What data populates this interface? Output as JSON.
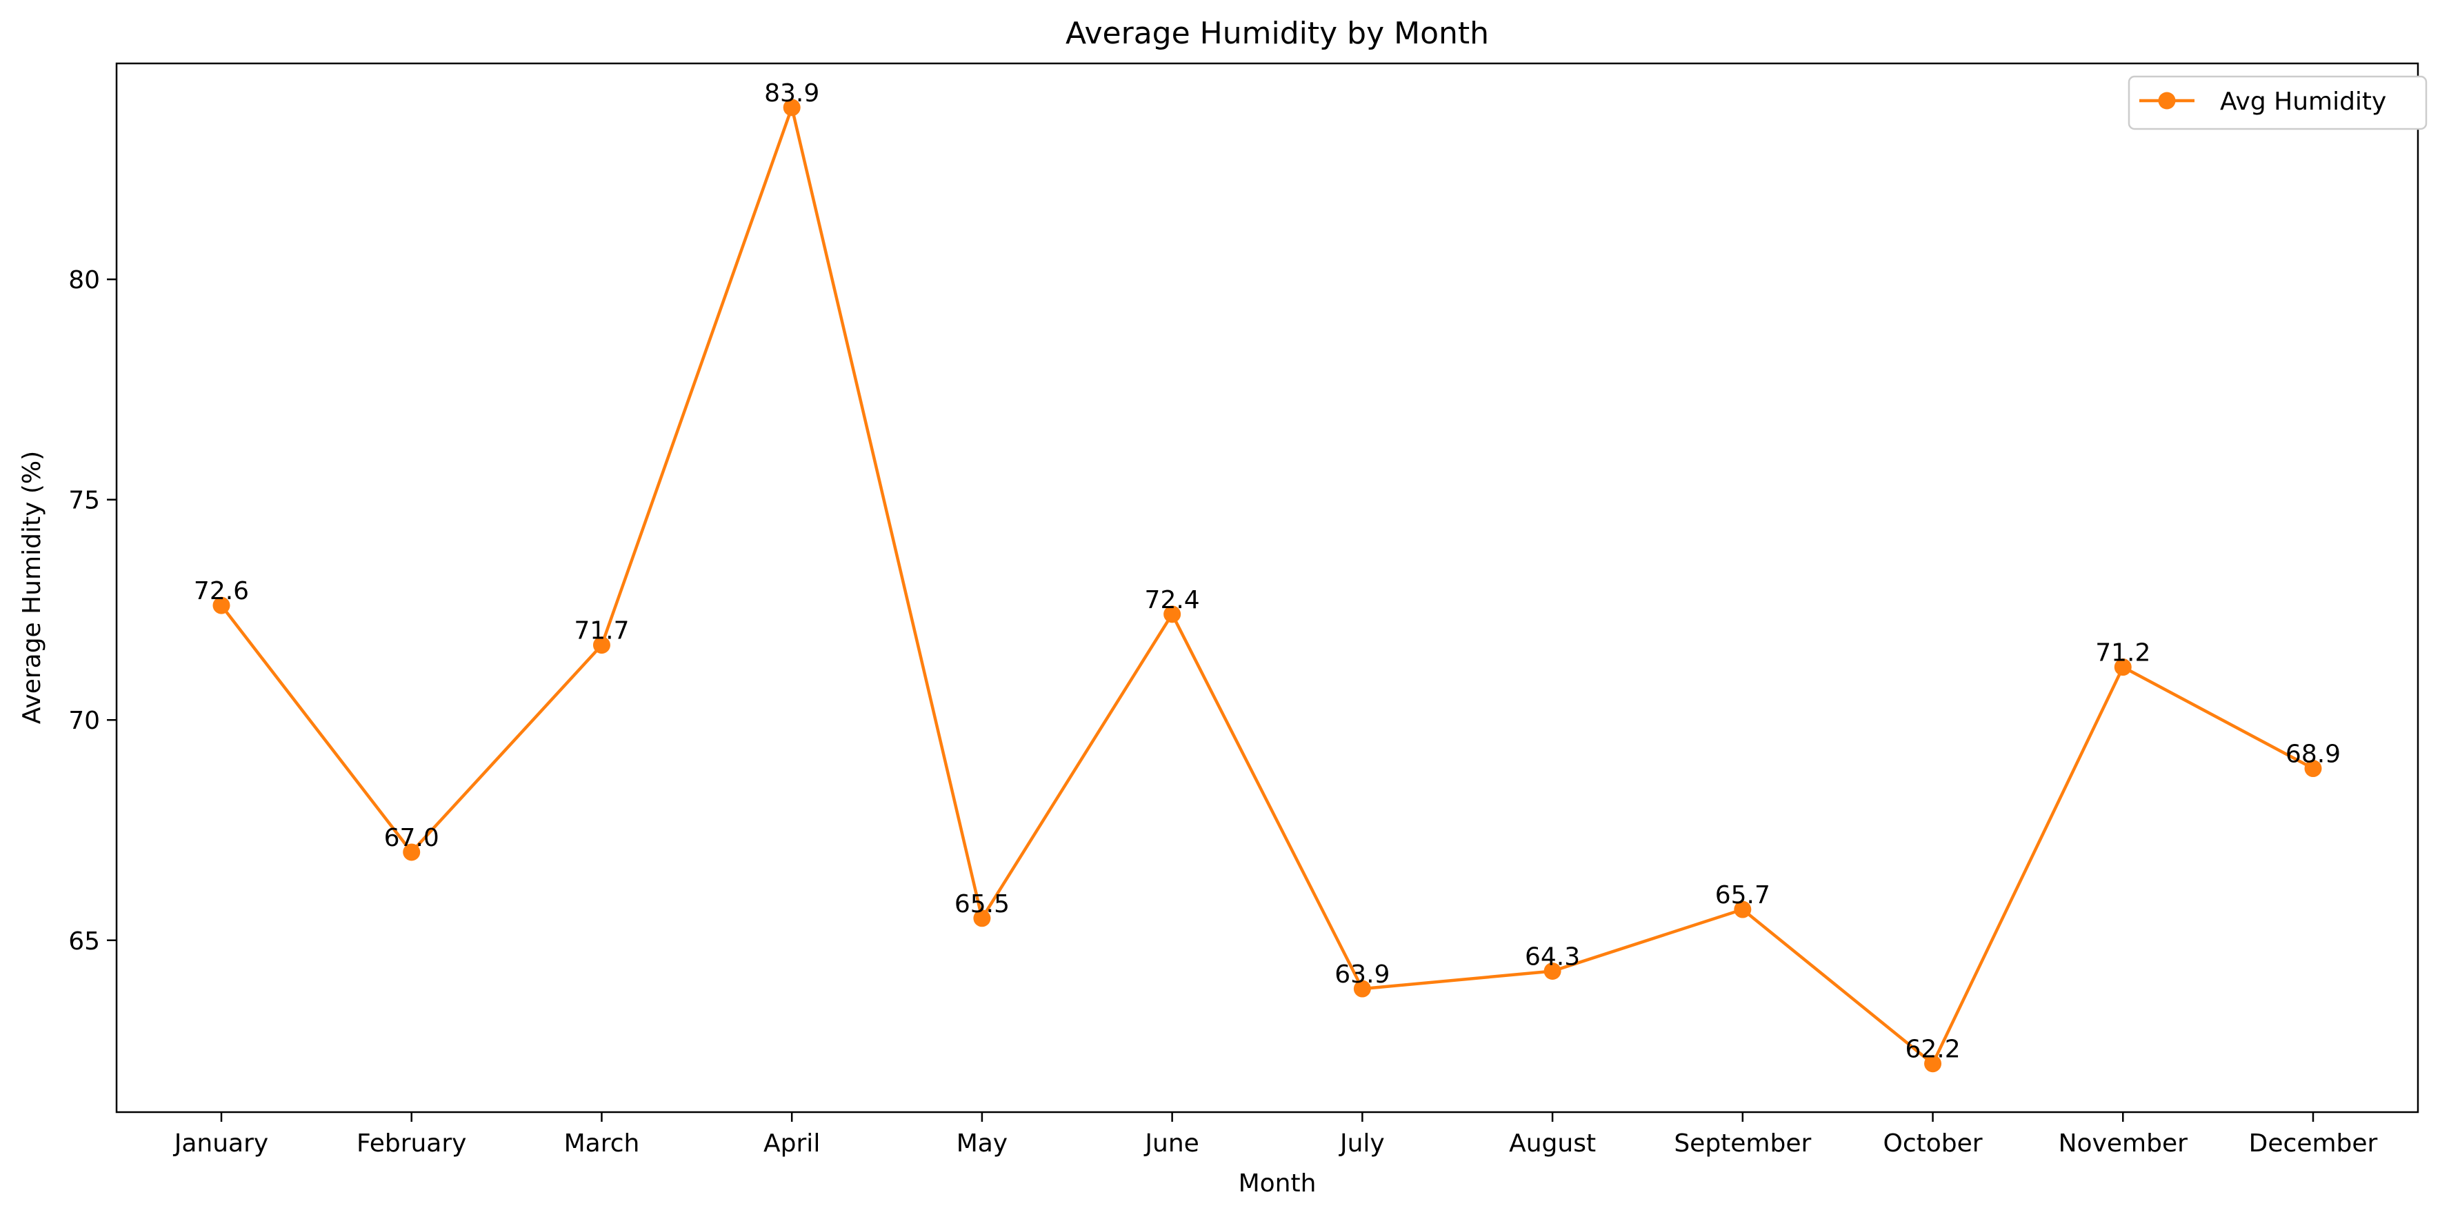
{
  "chart_data": {
    "type": "line",
    "title": "Average Humidity by Month",
    "xlabel": "Month",
    "ylabel": "Average Humidity (%)",
    "categories": [
      "January",
      "February",
      "March",
      "April",
      "May",
      "June",
      "July",
      "August",
      "September",
      "October",
      "November",
      "December"
    ],
    "series": [
      {
        "name": "Avg Humidity",
        "color": "#ff7f0e",
        "marker": "circle",
        "values": [
          72.6,
          67.0,
          71.7,
          83.9,
          65.5,
          72.4,
          63.9,
          64.3,
          65.7,
          62.2,
          71.2,
          68.9
        ],
        "data_labels": [
          "72.6",
          "67.0",
          "71.7",
          "83.9",
          "65.5",
          "72.4",
          "63.9",
          "64.3",
          "65.7",
          "62.2",
          "71.2",
          "68.9"
        ]
      }
    ],
    "ylim": [
      61.1,
      84.9
    ],
    "yticks": [
      65,
      70,
      75,
      80
    ],
    "ytick_labels": [
      "65",
      "70",
      "75",
      "80"
    ],
    "grid": false,
    "legend": {
      "position": "upper right"
    }
  }
}
